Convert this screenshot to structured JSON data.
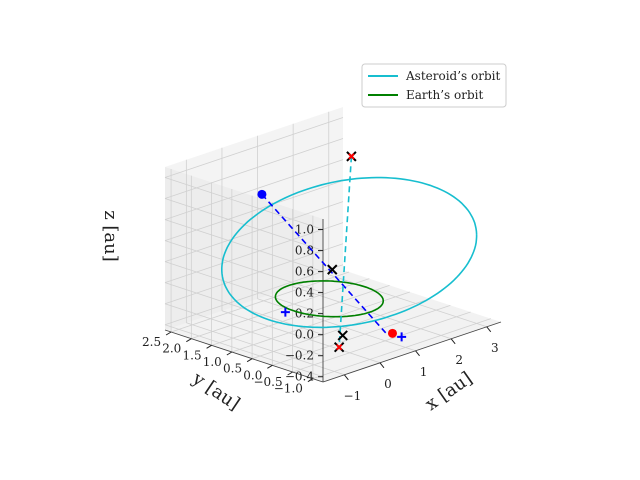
{
  "chart_data": {
    "type": "line3d",
    "title": "",
    "colors": {
      "asteroid": "#17becf",
      "earth": "#008000",
      "blue": "#0000ff",
      "red": "#ff0000",
      "black": "#000000",
      "pane": "#f2f2f2",
      "grid": "#d0d0d0"
    },
    "axes": {
      "x": {
        "label": "x [au]",
        "lim": [
          -1.6,
          3.4
        ],
        "ticks": [
          -1,
          0,
          1,
          2,
          3
        ],
        "tick_labels": [
          "−1",
          "0",
          "1",
          "2",
          "3"
        ]
      },
      "y": {
        "label": "y [au]",
        "lim": [
          -1.25,
          2.65
        ],
        "ticks": [
          -1.0,
          -0.5,
          0.0,
          0.5,
          1.0,
          1.5,
          2.0,
          2.5
        ],
        "tick_labels": [
          "−1.0",
          "−0.5",
          "0.0",
          "0.5",
          "1.0",
          "1.5",
          "2.0",
          "2.5"
        ]
      },
      "z": {
        "label": "z [au]",
        "lim": [
          -0.45,
          1.1
        ],
        "ticks": [
          -0.4,
          -0.2,
          0.0,
          0.2,
          0.4,
          0.6,
          0.8,
          1.0
        ],
        "tick_labels": [
          "−0.4",
          "−0.2",
          "0.0",
          "0.2",
          "0.4",
          "0.6",
          "0.8",
          "1.0"
        ]
      }
    },
    "grid": true,
    "legend": {
      "placement": "upper-right",
      "entries": [
        {
          "label": "Asteroid’s orbit",
          "color": "#17becf"
        },
        {
          "label": "Earth’s orbit",
          "color": "#008000"
        }
      ]
    },
    "series": [
      {
        "name": "Asteroid’s orbit",
        "kind": "ellipse",
        "color": "#17becf",
        "center": [
          0.9,
          0.3,
          0.3
        ],
        "axis_u": [
          2.1,
          -1.3,
          0.1
        ],
        "axis_v": [
          -0.3,
          -0.2,
          0.75
        ]
      },
      {
        "name": "Earth’s orbit",
        "kind": "ellipse",
        "color": "#008000",
        "center": [
          0.0,
          0.0,
          0.0
        ],
        "axis_u": [
          1.0,
          0.0,
          0.0
        ],
        "axis_v": [
          0.0,
          1.0,
          0.0
        ]
      }
    ],
    "lines": [
      {
        "color": "#0000ff",
        "style": "dashed",
        "from": [
          -0.3,
          1.4,
          0.85
        ],
        "to": [
          0.9,
          -0.6,
          -0.35
        ]
      },
      {
        "color": "#17becf",
        "style": "dashed",
        "from": [
          2.1,
          1.3,
          0.95
        ],
        "to": [
          -0.35,
          -0.55,
          -0.35
        ]
      }
    ],
    "markers": [
      {
        "shape": "circle",
        "color": "#0000ff",
        "pos": [
          -0.3,
          1.4,
          0.85
        ]
      },
      {
        "shape": "circle",
        "color": "#ff0000",
        "pos": [
          0.75,
          -0.9,
          -0.3
        ]
      },
      {
        "shape": "plus",
        "color": "#0000ff",
        "pos": [
          -0.95,
          0.25,
          -0.05
        ]
      },
      {
        "shape": "plus",
        "color": "#0000ff",
        "pos": [
          0.95,
          -0.95,
          -0.35
        ]
      },
      {
        "shape": "x",
        "color": "#000000",
        "pos": [
          2.1,
          1.3,
          0.95
        ]
      },
      {
        "shape": "x",
        "color": "#ff0000",
        "pos": [
          2.1,
          1.3,
          0.95
        ]
      },
      {
        "shape": "x",
        "color": "#000000",
        "pos": [
          1.05,
          0.85,
          0.05
        ]
      },
      {
        "shape": "x",
        "color": "#000000",
        "pos": [
          -0.25,
          -0.55,
          -0.25
        ]
      },
      {
        "shape": "x",
        "color": "#000000",
        "pos": [
          -0.35,
          -0.55,
          -0.35
        ]
      },
      {
        "shape": "x",
        "color": "#ff0000",
        "pos": [
          -0.35,
          -0.55,
          -0.35
        ]
      }
    ]
  }
}
